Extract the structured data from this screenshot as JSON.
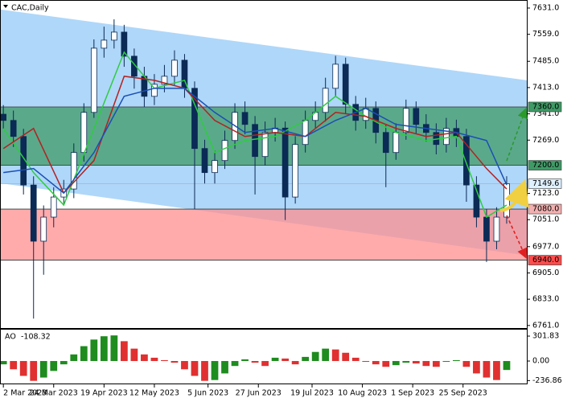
{
  "chart_data": [
    {
      "type": "candlestick",
      "title": "CAC,Daily",
      "x": [
        0,
        3,
        6,
        9,
        12,
        15,
        18,
        21,
        24,
        27,
        30,
        33,
        36,
        39,
        42,
        45,
        48,
        51,
        54,
        57,
        60,
        63,
        66,
        69,
        72,
        75,
        78,
        81,
        84,
        87,
        90,
        93,
        96,
        99,
        102,
        105,
        108,
        111,
        114,
        117,
        120,
        123,
        126,
        129,
        132,
        135,
        138,
        141,
        144,
        147,
        150
      ],
      "open": [
        7340,
        7323,
        7279,
        7146,
        6992,
        7058,
        7113,
        7135,
        7235,
        7345,
        7521,
        7543,
        7565,
        7499,
        7444,
        7389,
        7422,
        7444,
        7488,
        7411,
        7246,
        7180,
        7213,
        7268,
        7345,
        7312,
        7224,
        7290,
        7302,
        7113,
        7257,
        7323,
        7345,
        7411,
        7477,
        7367,
        7323,
        7356,
        7290,
        7235,
        7290,
        7356,
        7312,
        7290,
        7257,
        7301,
        7279,
        7146,
        7058,
        6992,
        7058
      ],
      "high": [
        7365,
        7350,
        7300,
        7170,
        7090,
        7140,
        7160,
        7260,
        7370,
        7545,
        7580,
        7600,
        7585,
        7520,
        7470,
        7450,
        7475,
        7515,
        7505,
        7430,
        7270,
        7240,
        7295,
        7370,
        7375,
        7335,
        7320,
        7330,
        7320,
        7280,
        7350,
        7375,
        7440,
        7500,
        7495,
        7390,
        7385,
        7375,
        7310,
        7315,
        7380,
        7375,
        7340,
        7315,
        7330,
        7325,
        7300,
        7170,
        7080,
        7085,
        7170
      ],
      "low": [
        7300,
        7250,
        7120,
        6780,
        6900,
        7030,
        7090,
        7110,
        7210,
        7330,
        7495,
        7520,
        7470,
        7410,
        7360,
        7365,
        7400,
        7420,
        7385,
        7080,
        7150,
        7150,
        7190,
        7245,
        7285,
        7120,
        7200,
        7265,
        7050,
        7095,
        7235,
        7300,
        7320,
        7390,
        7340,
        7295,
        7300,
        7260,
        7140,
        7215,
        7270,
        7285,
        7265,
        7230,
        7235,
        7250,
        7100,
        7030,
        6935,
        6970,
        7040
      ],
      "close": [
        7323,
        7279,
        7146,
        6992,
        7058,
        7113,
        7135,
        7235,
        7345,
        7521,
        7543,
        7565,
        7499,
        7444,
        7389,
        7422,
        7444,
        7488,
        7411,
        7246,
        7180,
        7213,
        7268,
        7345,
        7312,
        7224,
        7290,
        7302,
        7113,
        7257,
        7323,
        7345,
        7411,
        7477,
        7367,
        7323,
        7356,
        7290,
        7235,
        7290,
        7356,
        7312,
        7290,
        7257,
        7301,
        7279,
        7146,
        7058,
        6992,
        7058,
        7149.6
      ],
      "candle_color": "#0b2a55",
      "series": [
        {
          "color": "#2ecc40",
          "x": [
            0,
            9,
            18,
            27,
            36,
            45,
            54,
            63,
            72,
            81,
            90,
            99,
            108,
            117,
            126,
            135,
            144,
            150
          ],
          "values": [
            7301,
            7180,
            7091,
            7301,
            7510,
            7411,
            7433,
            7235,
            7268,
            7279,
            7323,
            7389,
            7334,
            7290,
            7268,
            7279,
            7058,
            7091
          ]
        },
        {
          "color": "#b22222",
          "x": [
            0,
            9,
            18,
            27,
            36,
            45,
            54,
            63,
            72,
            81,
            90,
            99,
            108,
            117,
            126,
            135,
            144,
            150
          ],
          "values": [
            7246,
            7301,
            7124,
            7213,
            7444,
            7433,
            7411,
            7323,
            7279,
            7290,
            7279,
            7345,
            7334,
            7301,
            7279,
            7290,
            7191,
            7135
          ]
        },
        {
          "color": "#1a4fb5",
          "x": [
            0,
            9,
            18,
            27,
            36,
            45,
            54,
            63,
            72,
            81,
            90,
            99,
            108,
            117,
            126,
            135,
            144,
            150
          ],
          "values": [
            7180,
            7191,
            7124,
            7235,
            7389,
            7411,
            7411,
            7345,
            7290,
            7301,
            7279,
            7323,
            7356,
            7312,
            7301,
            7290,
            7268,
            7146
          ]
        }
      ],
      "channel": {
        "upper": [
          7627,
          7433
        ],
        "lower": [
          7151,
          6953
        ],
        "color": "#a6d3f8"
      },
      "zones": [
        {
          "from": 7360,
          "to": 7200,
          "color": "#3f9a66"
        },
        {
          "from": 7080,
          "to": 6940,
          "color": "#ff8f8f"
        }
      ],
      "levels": [
        {
          "value": 7360,
          "label": "7360.0",
          "color": "#3f9a66"
        },
        {
          "value": 7200,
          "label": "7200.0",
          "color": "#3f9a66"
        },
        {
          "value": 7080,
          "label": "7080.0",
          "color": "#f3b0b0"
        },
        {
          "value": 6940,
          "label": "6940.0",
          "color": "#ff4d4d"
        }
      ],
      "xlim": [
        -1,
        156
      ],
      "ylim": [
        6754,
        7653
      ],
      "yticks": [
        {
          "value": 7631,
          "label": "7631.0"
        },
        {
          "value": 7559,
          "label": "7559.0"
        },
        {
          "value": 7485,
          "label": "7485.0"
        },
        {
          "value": 7413,
          "label": "7413.0"
        },
        {
          "value": 7341,
          "label": "7341.0"
        },
        {
          "value": 7269,
          "label": "7269.0"
        },
        {
          "value": 7123,
          "label": "7123.0"
        },
        {
          "value": 7051,
          "label": "7051.0"
        },
        {
          "value": 6977,
          "label": "6977.0"
        },
        {
          "value": 6905,
          "label": "6905.0"
        },
        {
          "value": 6833,
          "label": "6833.0"
        },
        {
          "value": 6761,
          "label": "6761.0"
        }
      ]
    },
    {
      "type": "bar",
      "title": "AO",
      "x": [
        0,
        3,
        6,
        9,
        12,
        15,
        18,
        21,
        24,
        27,
        30,
        33,
        36,
        39,
        42,
        45,
        48,
        51,
        54,
        57,
        60,
        63,
        66,
        69,
        72,
        75,
        78,
        81,
        84,
        87,
        90,
        93,
        96,
        99,
        102,
        105,
        108,
        111,
        114,
        117,
        120,
        123,
        126,
        129,
        132,
        135,
        138,
        141,
        144,
        147,
        150
      ],
      "values": [
        -40,
        -100,
        -180,
        -240,
        -200,
        -120,
        -40,
        80,
        180,
        260,
        300,
        310,
        240,
        150,
        80,
        40,
        10,
        -20,
        -100,
        -180,
        -240,
        -230,
        -150,
        -60,
        20,
        -20,
        -60,
        40,
        30,
        -40,
        50,
        110,
        150,
        140,
        100,
        40,
        -10,
        -40,
        -70,
        -50,
        -20,
        -30,
        -60,
        -70,
        -10,
        10,
        -70,
        -150,
        -200,
        -230,
        -108.32
      ],
      "up_color": "#1e8c1e",
      "down_color": "#e03030",
      "xlim": [
        -1,
        156
      ],
      "ylim": [
        -282,
        380
      ],
      "yticks": [
        301.83,
        {
          "value": 0,
          "label": "0.00"
        },
        -236.86
      ],
      "xticks": [
        {
          "value": 0,
          "label": "2 Mar 2023"
        },
        {
          "value": 15,
          "label": "24 Mar 2023"
        },
        {
          "value": 30,
          "label": "19 Apr 2023"
        },
        {
          "value": 45,
          "label": "12 May 2023"
        },
        {
          "value": 61,
          "label": "5 Jun 2023"
        },
        {
          "value": 76,
          "label": "27 Jun 2023"
        },
        {
          "value": 92,
          "label": "19 Jul 2023"
        },
        {
          "value": 107,
          "label": "10 Aug 2023"
        },
        {
          "value": 122,
          "label": "1 Sep 2023"
        },
        {
          "value": 137,
          "label": "25 Sep 2023"
        }
      ]
    }
  ]
}
